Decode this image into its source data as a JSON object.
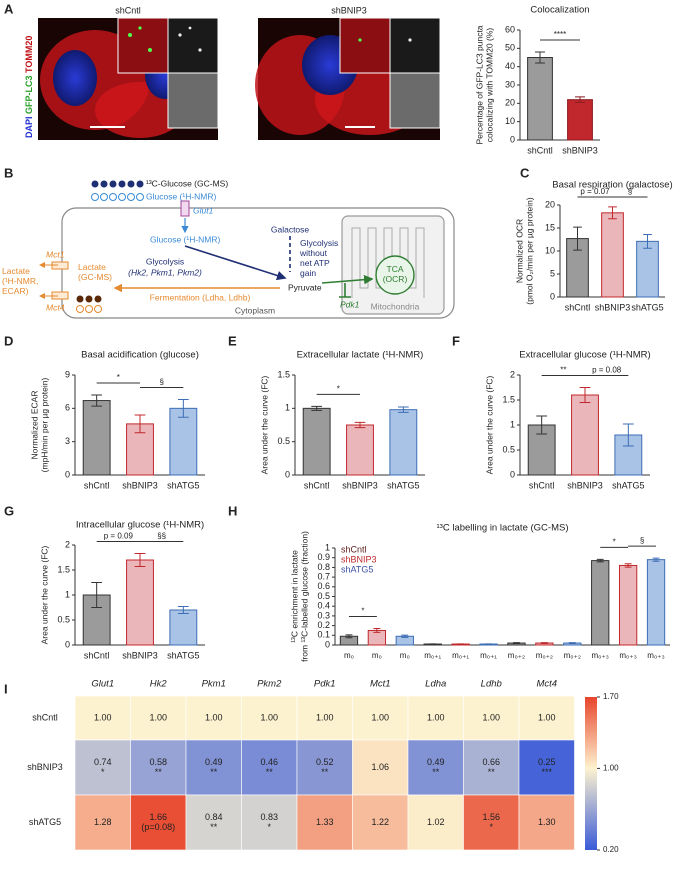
{
  "figure": {
    "panel_labels": [
      "A",
      "B",
      "C",
      "D",
      "E",
      "F",
      "G",
      "H",
      "I"
    ]
  },
  "micrographs": {
    "titles": [
      "shCntl",
      "shBNIP3"
    ],
    "stain_label": [
      "DAPI",
      "GFP-LC3",
      "TOMM20"
    ]
  },
  "diagram": {
    "gcms_glucose": "¹³C-Glucose (GC-MS)",
    "nmr_glucose_out": "Glucose (¹H-NMR)",
    "glut1": "Glut1",
    "nmr_glucose_in": "Glucose (¹H-NMR)",
    "galactose": "Galactose",
    "glycolysis_no_atp": [
      "Glycolysis",
      "without",
      "net ATP",
      "gain"
    ],
    "glycolysis": "Glycolysis",
    "glycolysis_enzymes": "(Hk2, Pkm1, Pkm2)",
    "pyruvate": "Pyruvate",
    "lactate_in": [
      "Lactate",
      "(GC-MS)"
    ],
    "fermentation": "Fermentation (Ldha, Ldhb)",
    "lactate_out": [
      "Lactate",
      "(¹H-NMR,",
      "ECAR)"
    ],
    "mct1": "Mct1",
    "mct4": "Mct4",
    "pdk1": "Pdk1",
    "tca": [
      "TCA",
      "(OCR)"
    ],
    "mitochondria": "Mitochondria",
    "cytoplasm": "Cytoplasm"
  },
  "chart_data": [
    {
      "type": "bar",
      "title": "Colocalization",
      "ylabel": [
        "Percentage of GFP-LC3 puncta",
        "colocalizing with TOMM20 (%)"
      ],
      "categories": [
        "shCntl",
        "shBNIP3"
      ],
      "values": [
        45,
        22
      ],
      "errors": [
        3,
        1.5
      ],
      "colors": [
        "#9b9b9b",
        "#c0282d"
      ],
      "edge_colors": [
        "#333333",
        "#8b1a1e"
      ],
      "ylim": [
        0,
        60
      ],
      "yticks": [
        0,
        10,
        20,
        30,
        40,
        50,
        60
      ],
      "annotations": [
        "****"
      ]
    },
    {
      "type": "bar",
      "title": "Basal respiration (galactose)",
      "ylabel": [
        "Normalized OCR",
        "(pmol O₂/min per µg protein)"
      ],
      "categories": [
        "shCntl",
        "shBNIP3",
        "shATG5"
      ],
      "values": [
        12.7,
        18.3,
        12.1
      ],
      "errors": [
        2.5,
        1.3,
        1.5
      ],
      "colors": [
        "#9b9b9b",
        "#eab6b9",
        "#a9c3e6"
      ],
      "edge_colors": [
        "#333333",
        "#c0282d",
        "#3d6db5"
      ],
      "ylim": [
        0,
        20
      ],
      "yticks": [
        0,
        5,
        10,
        15,
        20
      ],
      "annotations": [
        "p = 0.07",
        "§"
      ]
    },
    {
      "type": "bar",
      "title": "Basal acidification (glucose)",
      "ylabel": [
        "Normalized ECAR",
        "(mpH/min per µg protein)"
      ],
      "categories": [
        "shCntl",
        "shBNIP3",
        "shATG5"
      ],
      "values": [
        6.7,
        4.6,
        6.0
      ],
      "errors": [
        0.5,
        0.8,
        0.8
      ],
      "colors": [
        "#9b9b9b",
        "#eab6b9",
        "#a9c3e6"
      ],
      "edge_colors": [
        "#333333",
        "#c0282d",
        "#3d6db5"
      ],
      "ylim": [
        0,
        9
      ],
      "yticks": [
        0,
        3,
        6,
        9
      ],
      "annotations": [
        "*",
        "§"
      ]
    },
    {
      "type": "bar",
      "title": "Extracellular lactate (¹H-NMR)",
      "ylabel": [
        "Area under the curve (FC)"
      ],
      "categories": [
        "shCntl",
        "shBNIP3",
        "shATG5"
      ],
      "values": [
        1.0,
        0.75,
        0.98
      ],
      "errors": [
        0.03,
        0.04,
        0.04
      ],
      "colors": [
        "#9b9b9b",
        "#eab6b9",
        "#a9c3e6"
      ],
      "edge_colors": [
        "#333333",
        "#c0282d",
        "#3d6db5"
      ],
      "ylim": [
        0,
        1.5
      ],
      "yticks": [
        0,
        0.5,
        1,
        1.5
      ],
      "annotations": [
        "*"
      ]
    },
    {
      "type": "bar",
      "title": "Extracellular glucose (¹H-NMR)",
      "ylabel": [
        "Area under the curve (FC)"
      ],
      "categories": [
        "shCntl",
        "shBNIP3",
        "shATG5"
      ],
      "values": [
        1.0,
        1.6,
        0.8
      ],
      "errors": [
        0.18,
        0.15,
        0.22
      ],
      "colors": [
        "#9b9b9b",
        "#eab6b9",
        "#a9c3e6"
      ],
      "edge_colors": [
        "#333333",
        "#c0282d",
        "#3d6db5"
      ],
      "ylim": [
        0,
        2
      ],
      "yticks": [
        0,
        0.5,
        1,
        1.5,
        2
      ],
      "annotations": [
        "**",
        "p = 0.08"
      ]
    },
    {
      "type": "bar",
      "title": "Intracellular glucose (¹H-NMR)",
      "ylabel": [
        "Area under the curve (FC)"
      ],
      "categories": [
        "shCntl",
        "shBNIP3",
        "shATG5"
      ],
      "values": [
        1.0,
        1.7,
        0.7
      ],
      "errors": [
        0.25,
        0.13,
        0.07
      ],
      "colors": [
        "#9b9b9b",
        "#eab6b9",
        "#a9c3e6"
      ],
      "edge_colors": [
        "#333333",
        "#c0282d",
        "#3d6db5"
      ],
      "ylim": [
        0,
        2
      ],
      "yticks": [
        0,
        0.5,
        1,
        1.5,
        2
      ],
      "annotations": [
        "p = 0.09",
        "§§"
      ]
    },
    {
      "type": "bar",
      "title": "¹³C labelling in lactate (GC-MS)",
      "ylabel": [
        "¹³C enrichment in lactate",
        "from ¹³C-labelled glucose (fraction)"
      ],
      "categories": [
        "m₀",
        "m₀",
        "m₀",
        "m₀₊₁",
        "m₀₊₁",
        "m₀₊₁",
        "m₀₊₂",
        "m₀₊₂",
        "m₀₊₂",
        "m₀₊₃",
        "m₀₊₃",
        "m₀₊₃"
      ],
      "values": [
        0.09,
        0.15,
        0.09,
        0.01,
        0.01,
        0.01,
        0.02,
        0.02,
        0.02,
        0.87,
        0.82,
        0.88
      ],
      "errors": [
        0.015,
        0.02,
        0.012,
        0.002,
        0.002,
        0.001,
        0.004,
        0.005,
        0.004,
        0.013,
        0.017,
        0.016
      ],
      "colors": [
        "#9b9b9b",
        "#eab6b9",
        "#a9c3e6",
        "#9b9b9b",
        "#eab6b9",
        "#a9c3e6",
        "#9b9b9b",
        "#eab6b9",
        "#a9c3e6",
        "#9b9b9b",
        "#eab6b9",
        "#a9c3e6"
      ],
      "edge_colors": [
        "#333333",
        "#c0282d",
        "#3d6db5",
        "#333333",
        "#c0282d",
        "#3d6db5",
        "#333333",
        "#c0282d",
        "#3d6db5",
        "#333333",
        "#c0282d",
        "#3d6db5"
      ],
      "ylim": [
        0,
        1
      ],
      "yticks": [
        0,
        0.1,
        0.2,
        0.3,
        0.4,
        0.5,
        0.6,
        0.7,
        0.8,
        0.9,
        1
      ],
      "annotations": [
        "*",
        "*",
        "§"
      ],
      "legend": [
        {
          "name": "shCntl",
          "color": "#5a1a1a"
        },
        {
          "name": "shBNIP3",
          "color": "#c0282d"
        },
        {
          "name": "shATG5",
          "color": "#3d4fa5"
        }
      ]
    }
  ],
  "heatmap_table": {
    "columns": [
      "Glut1",
      "Hk2",
      "Pkm1",
      "Pkm2",
      "Pdk1",
      "Mct1",
      "Ldha",
      "Ldhb",
      "Mct4"
    ],
    "rows": [
      {
        "name": "shCntl",
        "cells": [
          {
            "value": "1.00"
          },
          {
            "value": "1.00"
          },
          {
            "value": "1.00"
          },
          {
            "value": "1.00"
          },
          {
            "value": "1.00"
          },
          {
            "value": "1.00"
          },
          {
            "value": "1.00"
          },
          {
            "value": "1.00"
          },
          {
            "value": "1.00"
          }
        ]
      },
      {
        "name": "shBNIP3",
        "cells": [
          {
            "value": "0.74",
            "notes": [
              "*"
            ]
          },
          {
            "value": "0.58",
            "notes": [
              "**"
            ]
          },
          {
            "value": "0.49",
            "notes": [
              "**"
            ]
          },
          {
            "value": "0.46",
            "notes": [
              "**"
            ]
          },
          {
            "value": "0.52",
            "notes": [
              "**"
            ]
          },
          {
            "value": "1.06"
          },
          {
            "value": "0.49",
            "notes": [
              "**"
            ]
          },
          {
            "value": "0.66",
            "notes": [
              "**"
            ]
          },
          {
            "value": "0.25",
            "notes": [
              "***"
            ]
          }
        ]
      },
      {
        "name": "shATG5",
        "cells": [
          {
            "value": "1.28"
          },
          {
            "value": "1.66",
            "notes": [
              "(p=0.08)"
            ]
          },
          {
            "value": "0.84",
            "notes": [
              "**"
            ]
          },
          {
            "value": "0.83",
            "notes": [
              "*"
            ]
          },
          {
            "value": "1.33"
          },
          {
            "value": "1.22"
          },
          {
            "value": "1.02"
          },
          {
            "value": "1.56",
            "notes": [
              "*"
            ]
          },
          {
            "value": "1.30"
          }
        ]
      }
    ],
    "colorbar_ticks": [
      {
        "value": 1.7,
        "label": "1.70"
      },
      {
        "value": 1,
        "label": "1.00"
      },
      {
        "value": 0.2,
        "label": "0.20"
      }
    ],
    "colorbar_colors": [
      "#e8452c",
      "#fdf2cf",
      "#3a5bd8"
    ]
  }
}
